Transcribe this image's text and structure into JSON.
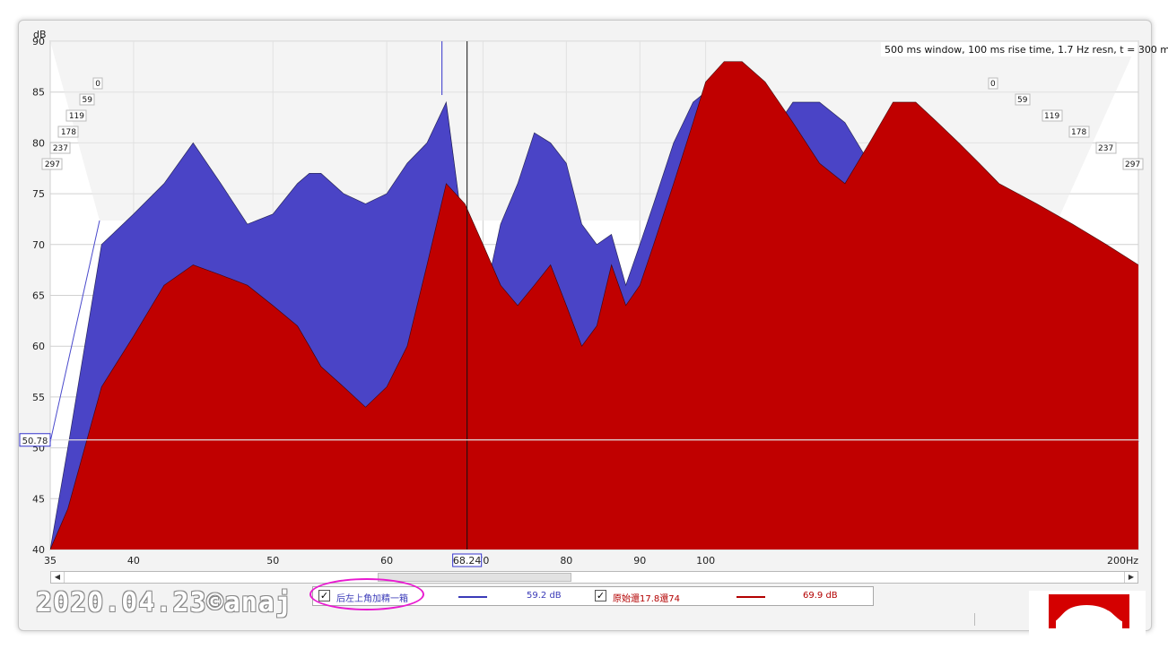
{
  "chart_data": {
    "type": "area",
    "title": "",
    "xlabel": "",
    "ylabel": "dB",
    "x_scale": "log",
    "xlim": [
      35,
      200
    ],
    "ylim": [
      40,
      90
    ],
    "x_ticks": [
      "35",
      "40",
      "50",
      "60",
      "70",
      "80",
      "90",
      "100",
      "200"
    ],
    "x_tick_suffix": "Hz",
    "y_ticks": [
      40,
      45,
      50,
      55,
      60,
      65,
      70,
      75,
      80,
      85,
      90
    ],
    "time_slices_ms": [
      "0",
      "59",
      "119",
      "178",
      "237",
      "297"
    ],
    "annotation": "500 ms window, 100 ms rise time,  1.7 Hz resn, t = 300 ms",
    "cursor": {
      "x_label": "68.24",
      "y_label": "50.78",
      "x": 68.24,
      "y": 50.78
    },
    "series": [
      {
        "name": "后左上角加精一箱",
        "color": "#3a3ab8",
        "x": [
          35,
          36,
          38,
          40,
          42,
          44,
          46,
          48,
          50,
          52,
          53,
          54,
          56,
          58,
          60,
          62,
          64,
          66,
          68,
          70,
          72,
          74,
          76,
          78,
          80,
          82,
          84,
          86,
          88,
          90,
          92,
          95,
          98,
          100,
          103,
          106,
          110,
          115,
          120,
          125,
          130,
          135,
          140,
          145,
          150,
          155,
          160,
          170,
          180,
          190,
          200
        ],
        "values": [
          40,
          50,
          70,
          73,
          76,
          80,
          76,
          72,
          73,
          76,
          77,
          77,
          75,
          74,
          75,
          78,
          80,
          84,
          70,
          64,
          72,
          76,
          81,
          80,
          78,
          72,
          70,
          71,
          66,
          70,
          74,
          80,
          84,
          85,
          82,
          78,
          80,
          84,
          84,
          82,
          78,
          74,
          72,
          70,
          66,
          60,
          58,
          56,
          54,
          50,
          45
        ]
      },
      {
        "name": "原始還17.8還74",
        "color": "#b30000",
        "x": [
          35,
          36,
          38,
          40,
          42,
          44,
          46,
          48,
          50,
          52,
          53,
          54,
          56,
          58,
          60,
          62,
          64,
          66,
          68,
          70,
          72,
          74,
          76,
          78,
          80,
          82,
          84,
          86,
          88,
          90,
          92,
          95,
          98,
          100,
          103,
          106,
          110,
          115,
          120,
          125,
          130,
          135,
          140,
          145,
          150,
          155,
          160,
          170,
          180,
          190,
          200
        ],
        "values": [
          40,
          44,
          56,
          61,
          66,
          68,
          67,
          66,
          64,
          62,
          60,
          58,
          56,
          54,
          56,
          60,
          68,
          76,
          74,
          70,
          66,
          64,
          66,
          68,
          64,
          60,
          62,
          68,
          64,
          66,
          70,
          76,
          82,
          86,
          88,
          88,
          86,
          82,
          78,
          76,
          80,
          84,
          84,
          82,
          80,
          78,
          76,
          74,
          72,
          70,
          68
        ]
      }
    ]
  },
  "legend": [
    {
      "checked": "✓",
      "name": "后左上角加精一箱",
      "value": "59.2 dB",
      "color": "#3a3ab8"
    },
    {
      "checked": "✓",
      "name": "原始還17.8還74",
      "value": "69.9 dB",
      "color": "#b30000"
    }
  ],
  "scroll": {
    "left_arrow": "◀",
    "right_arrow": "▶"
  },
  "watermark": "2020.04.23©anaj"
}
